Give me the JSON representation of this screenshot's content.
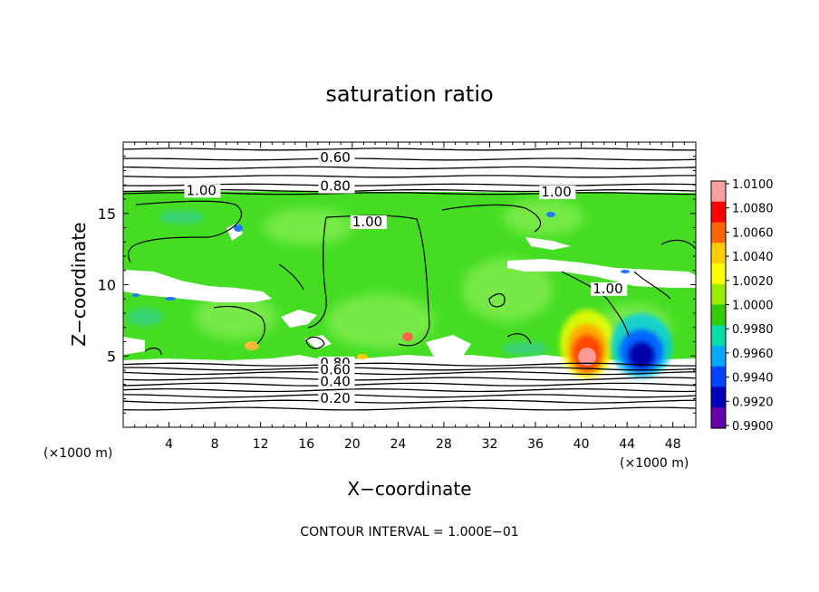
{
  "chart_data": {
    "type": "heatmap",
    "title": "saturation ratio",
    "xlabel": "X−coordinate",
    "ylabel": "Z−coordinate",
    "x_unit_left": "(×1000 m)",
    "x_unit_right": "(×1000 m)",
    "footer": "CONTOUR INTERVAL = 1.000E−01",
    "xlim": [
      0,
      50
    ],
    "ylim": [
      0,
      20
    ],
    "x_ticks": [
      4,
      8,
      12,
      16,
      20,
      24,
      28,
      32,
      36,
      40,
      44,
      48
    ],
    "y_ticks": [
      5,
      10,
      15
    ],
    "colorbar": {
      "labels": [
        "1.0100",
        "1.0080",
        "1.0060",
        "1.0040",
        "1.0020",
        "1.0000",
        "0.9980",
        "0.9960",
        "0.9940",
        "0.9920",
        "0.9900"
      ],
      "colors": [
        "#ffa0a0",
        "#ff0000",
        "#ff6600",
        "#ffcc00",
        "#ffff00",
        "#99ee00",
        "#33cc00",
        "#00ddaa",
        "#00aaff",
        "#0044ff",
        "#0000bb",
        "#6600aa"
      ]
    },
    "contour_labels": [
      {
        "text": "0.60",
        "x": 17.2,
        "z": 18.6
      },
      {
        "text": "0.80",
        "x": 17.2,
        "z": 16.6
      },
      {
        "text": "1.00",
        "x": 5.5,
        "z": 16.3
      },
      {
        "text": "1.00",
        "x": 36.5,
        "z": 16.2
      },
      {
        "text": "1.00",
        "x": 20.0,
        "z": 14.1
      },
      {
        "text": "1.00",
        "x": 41.0,
        "z": 9.4
      },
      {
        "text": "0.80",
        "x": 17.2,
        "z": 4.2
      },
      {
        "text": "0.60",
        "x": 17.2,
        "z": 3.7
      },
      {
        "text": "0.40",
        "x": 17.2,
        "z": 2.9
      },
      {
        "text": "0.20",
        "x": 17.2,
        "z": 1.7
      }
    ]
  }
}
